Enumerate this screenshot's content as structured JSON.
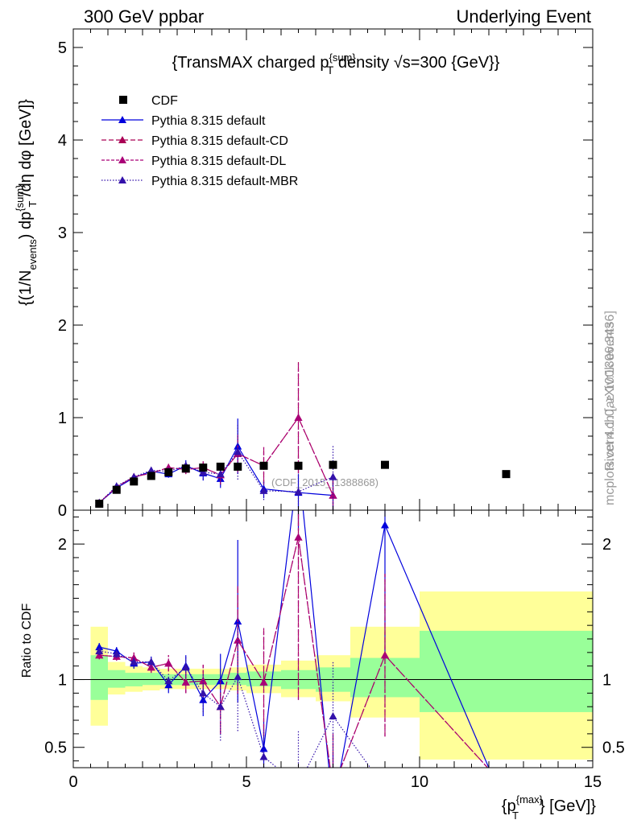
{
  "header": {
    "left": "300 GeV ppbar",
    "right": "Underlying Event"
  },
  "side_labels": {
    "rivet": "Rivet 4.1.0, ≥ 100k events",
    "mcplots": "mcplots.cern.ch [arXiv:1306.3436]"
  },
  "chart_data": [
    {
      "type": "scatter",
      "panel": "main",
      "title_parts": [
        "{TransMAX charged p",
        "{sum}",
        "T",
        " density √s=300 {GeV}}"
      ],
      "ylabel_parts": [
        "{(1/N",
        "events",
        ") dp",
        "{sum}",
        "T",
        " /dη dφ [GeV]}"
      ],
      "watermark": "(CDF_2015_I1388868)",
      "ylim": [
        0,
        5.2
      ],
      "xlim": [
        0,
        15
      ],
      "y_ticks": [
        0,
        1,
        2,
        3,
        4,
        5
      ],
      "y_tick_labels": [
        "0",
        "1",
        "2",
        "3",
        "4",
        "5"
      ],
      "colors": {
        "cdf": "#000000",
        "default": "#0000dd",
        "cd": "#aa0055",
        "dl": "#aa0077",
        "mbr": "#3311aa"
      },
      "legend": [
        {
          "key": "cdf",
          "label": "CDF"
        },
        {
          "key": "default",
          "label": "Pythia 8.315 default"
        },
        {
          "key": "cd",
          "label": "Pythia 8.315 default-CD"
        },
        {
          "key": "dl",
          "label": "Pythia 8.315 default-DL"
        },
        {
          "key": "mbr",
          "label": "Pythia 8.315 default-MBR"
        }
      ],
      "cdf": {
        "x": [
          0.75,
          1.25,
          1.75,
          2.25,
          2.75,
          3.25,
          3.75,
          4.25,
          4.75,
          5.5,
          6.5,
          7.5,
          9.0,
          12.5
        ],
        "y": [
          0.07,
          0.22,
          0.31,
          0.37,
          0.41,
          0.45,
          0.46,
          0.47,
          0.47,
          0.48,
          0.48,
          0.49,
          0.49,
          0.39
        ]
      },
      "series": [
        {
          "key": "default",
          "name": "Pythia 8.315 default",
          "dash": "",
          "x": [
            0.75,
            1.25,
            1.75,
            2.25,
            2.75,
            3.25,
            3.75,
            4.25,
            4.75,
            5.5,
            6.5,
            7.5
          ],
          "y": [
            0.08,
            0.24,
            0.35,
            0.42,
            0.39,
            0.48,
            0.4,
            0.34,
            0.69,
            0.23,
            0.19,
            0.16
          ],
          "err": [
            0.01,
            0.02,
            0.03,
            0.03,
            0.04,
            0.06,
            0.08,
            0.1,
            0.3,
            0.1,
            0.2,
            0.2
          ]
        },
        {
          "key": "cd",
          "name": "Pythia 8.315 default-CD",
          "dash": "6,3",
          "x": [
            0.75,
            1.25,
            1.75,
            2.25,
            2.75,
            3.25,
            3.75,
            4.25,
            4.75,
            5.5,
            6.5,
            7.5
          ],
          "y": [
            0.08,
            0.25,
            0.36,
            0.4,
            0.46,
            0.44,
            0.46,
            0.38,
            0.61,
            0.48,
            1.0,
            0.16
          ],
          "err": [
            0.01,
            0.02,
            0.03,
            0.03,
            0.04,
            0.05,
            0.07,
            0.1,
            0.2,
            0.2,
            0.6,
            0.2
          ]
        },
        {
          "key": "dl",
          "name": "Pythia 8.315 default-DL",
          "dash": "4,2",
          "x": [
            0.75,
            1.25,
            1.75,
            2.25,
            2.75,
            3.25,
            3.75,
            4.25,
            4.75,
            5.5,
            6.5,
            7.5
          ],
          "y": [
            0.08,
            0.25,
            0.36,
            0.4,
            0.46,
            0.44,
            0.46,
            0.38,
            0.61,
            0.48,
            1.0,
            0.16
          ],
          "err": [
            0.01,
            0.02,
            0.03,
            0.03,
            0.04,
            0.05,
            0.07,
            0.1,
            0.2,
            0.2,
            0.6,
            0.2
          ]
        },
        {
          "key": "mbr",
          "name": "Pythia 8.315 default-MBR",
          "dash": "1.5,2",
          "x": [
            0.75,
            1.25,
            1.75,
            2.25,
            2.75,
            3.25,
            3.75,
            4.25,
            4.75,
            5.5,
            6.5,
            7.5
          ],
          "y": [
            0.08,
            0.26,
            0.36,
            0.43,
            0.42,
            0.48,
            0.41,
            0.39,
            0.63,
            0.21,
            0.2,
            0.36
          ],
          "err": [
            0.01,
            0.02,
            0.03,
            0.03,
            0.04,
            0.06,
            0.08,
            0.12,
            0.3,
            0.1,
            0.2,
            0.35
          ]
        }
      ]
    },
    {
      "type": "line",
      "panel": "ratio",
      "ylabel": "Ratio to CDF",
      "xlabel_parts": [
        "{p",
        "{max}",
        "T",
        "} [GeV]}"
      ],
      "ylim": [
        0.35,
        2.25
      ],
      "xlim": [
        0,
        15
      ],
      "x_ticks": [
        0,
        5,
        10,
        15
      ],
      "x_tick_labels": [
        "0",
        "5",
        "10",
        "15"
      ],
      "y_ticks": [
        0.5,
        1,
        2
      ],
      "y_tick_labels": [
        "0.5",
        "1",
        "2"
      ],
      "ref_line": 1.0,
      "bands": [
        {
          "x0": 0.5,
          "x1": 1.0,
          "yellow": [
            0.66,
            1.39
          ],
          "green": [
            0.85,
            1.18
          ]
        },
        {
          "x0": 1.0,
          "x1": 1.5,
          "yellow": [
            0.89,
            1.13
          ],
          "green": [
            0.94,
            1.07
          ]
        },
        {
          "x0": 1.5,
          "x1": 2.0,
          "yellow": [
            0.91,
            1.1
          ],
          "green": [
            0.95,
            1.05
          ]
        },
        {
          "x0": 2.0,
          "x1": 2.5,
          "yellow": [
            0.92,
            1.09
          ],
          "green": [
            0.96,
            1.05
          ]
        },
        {
          "x0": 2.5,
          "x1": 3.0,
          "yellow": [
            0.93,
            1.08
          ],
          "green": [
            0.96,
            1.04
          ]
        },
        {
          "x0": 3.0,
          "x1": 3.5,
          "yellow": [
            0.93,
            1.08
          ],
          "green": [
            0.96,
            1.04
          ]
        },
        {
          "x0": 3.5,
          "x1": 4.0,
          "yellow": [
            0.93,
            1.08
          ],
          "green": [
            0.96,
            1.04
          ]
        },
        {
          "x0": 4.0,
          "x1": 4.5,
          "yellow": [
            0.93,
            1.08
          ],
          "green": [
            0.96,
            1.04
          ]
        },
        {
          "x0": 4.5,
          "x1": 5.0,
          "yellow": [
            0.92,
            1.09
          ],
          "green": [
            0.96,
            1.05
          ]
        },
        {
          "x0": 5.0,
          "x1": 6.0,
          "yellow": [
            0.9,
            1.11
          ],
          "green": [
            0.95,
            1.06
          ]
        },
        {
          "x0": 6.0,
          "x1": 7.0,
          "yellow": [
            0.87,
            1.14
          ],
          "green": [
            0.93,
            1.07
          ]
        },
        {
          "x0": 7.0,
          "x1": 8.0,
          "yellow": [
            0.84,
            1.18
          ],
          "green": [
            0.91,
            1.09
          ]
        },
        {
          "x0": 8.0,
          "x1": 10.0,
          "yellow": [
            0.72,
            1.39
          ],
          "green": [
            0.87,
            1.16
          ]
        },
        {
          "x0": 10.0,
          "x1": 15.0,
          "yellow": [
            0.41,
            1.65
          ],
          "green": [
            0.76,
            1.36
          ]
        }
      ],
      "series": [
        {
          "key": "default",
          "dash": "",
          "x": [
            0.75,
            1.25,
            1.75,
            2.25,
            2.75,
            3.25,
            3.75,
            4.25,
            4.75,
            5.5,
            6.5,
            7.5,
            9.0,
            12.5
          ],
          "y": [
            1.24,
            1.21,
            1.12,
            1.13,
            0.96,
            1.1,
            0.85,
            0.99,
            1.43,
            0.49,
            2.6,
            0.05,
            2.14,
            0.05
          ],
          "err": [
            0.03,
            0.03,
            0.04,
            0.04,
            0.06,
            0.08,
            0.12,
            0.2,
            0.6,
            0.2,
            0.5,
            0.4,
            1.0,
            0.0
          ]
        },
        {
          "key": "cd",
          "dash": "6,3",
          "x": [
            0.75,
            1.25,
            1.75,
            2.25,
            2.75,
            3.25,
            3.75,
            4.25,
            4.75,
            5.5,
            6.5,
            7.5,
            9.0,
            12.5
          ],
          "y": [
            1.18,
            1.17,
            1.16,
            1.09,
            1.12,
            0.98,
            0.99,
            0.8,
            1.29,
            0.98,
            2.05,
            0.2,
            1.18,
            0.2
          ],
          "err": [
            0.03,
            0.03,
            0.04,
            0.04,
            0.06,
            0.08,
            0.12,
            0.2,
            0.4,
            0.4,
            1.2,
            0.4,
            0.6,
            0.0
          ]
        },
        {
          "key": "dl",
          "dash": "4,2",
          "x": [
            0.75,
            1.25,
            1.75,
            2.25,
            2.75,
            3.25,
            3.75,
            4.25,
            4.75,
            5.5,
            6.5,
            7.5,
            9.0,
            12.5
          ],
          "y": [
            1.18,
            1.17,
            1.16,
            1.09,
            1.12,
            0.98,
            0.99,
            0.8,
            1.29,
            0.98,
            2.05,
            0.2,
            1.18,
            0.2
          ],
          "err": [
            0.03,
            0.03,
            0.04,
            0.04,
            0.06,
            0.08,
            0.12,
            0.2,
            0.4,
            0.4,
            1.2,
            0.4,
            0.6,
            0.0
          ]
        },
        {
          "key": "mbr",
          "dash": "1.5,2",
          "x": [
            0.75,
            1.25,
            1.75,
            2.25,
            2.75,
            3.25,
            3.75,
            4.25,
            4.75,
            5.5,
            6.5,
            7.5,
            9.0
          ],
          "y": [
            1.21,
            1.19,
            1.13,
            1.13,
            0.99,
            1.09,
            0.9,
            0.8,
            1.02,
            0.43,
            0.22,
            0.73,
            0.2
          ],
          "err": [
            0.03,
            0.03,
            0.04,
            0.04,
            0.06,
            0.08,
            0.14,
            0.25,
            0.4,
            0.2,
            0.4,
            0.4,
            0.0
          ]
        }
      ]
    }
  ]
}
